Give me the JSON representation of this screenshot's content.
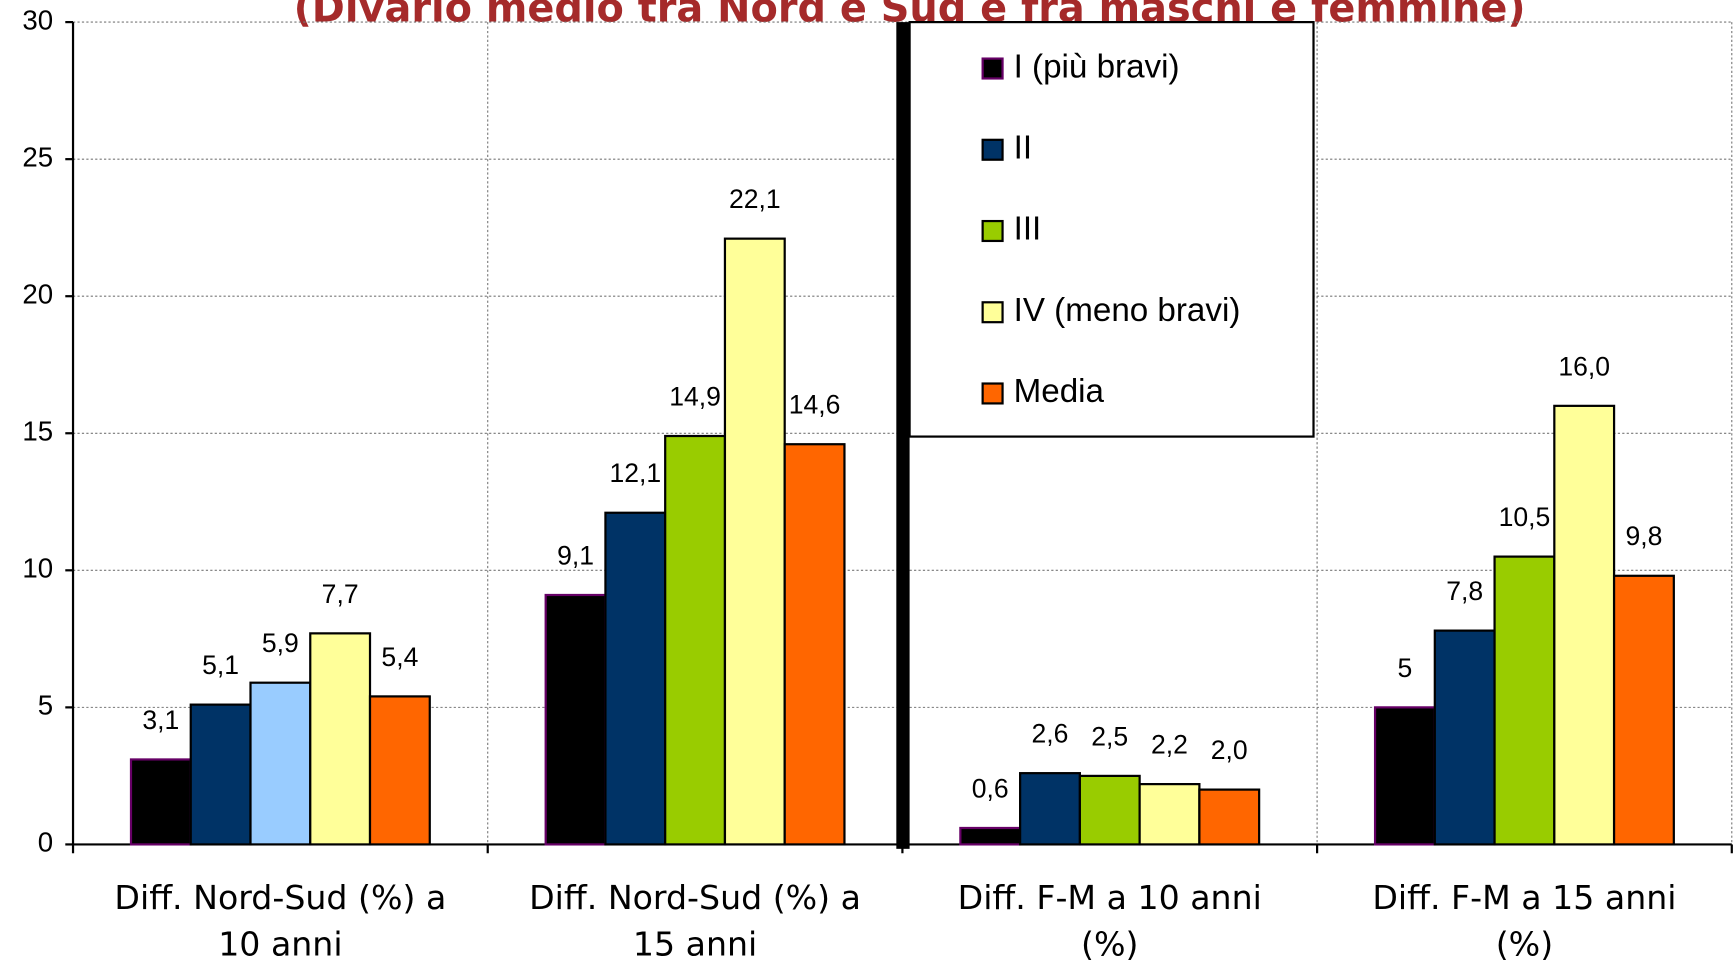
{
  "chart_data": {
    "type": "bar",
    "title": "(Divario medio tra Nord e Sud e fra maschi e femmine)",
    "categories": [
      [
        "Diff. Nord-Sud (%) a",
        "10 anni"
      ],
      [
        "Diff. Nord-Sud (%) a",
        "15 anni"
      ],
      [
        "Diff. F-M a 10 anni",
        "(%)"
      ],
      [
        "Diff. F-M a 15 anni",
        "(%)"
      ]
    ],
    "series": [
      {
        "name": "I (più bravi)",
        "color": "#000000",
        "border": "#660066",
        "values": [
          3.1,
          9.1,
          0.6,
          5
        ],
        "value_labels": [
          "3,1",
          "9,1",
          "0,6",
          "5"
        ]
      },
      {
        "name": "II",
        "color": "#003366",
        "border": "#000000",
        "values": [
          5.1,
          12.1,
          2.6,
          7.8
        ],
        "value_labels": [
          "5,1",
          "12,1",
          "2,6",
          "7,8"
        ]
      },
      {
        "name": "III",
        "color": "#99cc00",
        "border": "#000000",
        "point_colors": [
          "#99ccff",
          "#99cc00",
          "#99cc00",
          "#99cc00"
        ],
        "values": [
          5.9,
          14.9,
          2.5,
          10.5
        ],
        "value_labels": [
          "5,9",
          "14,9",
          "2,5",
          "10,5"
        ]
      },
      {
        "name": "IV (meno bravi)",
        "color": "#ffff99",
        "border": "#000000",
        "values": [
          7.7,
          22.1,
          2.2,
          16.0
        ],
        "value_labels": [
          "7,7",
          "22,1",
          "2,2",
          "16,0"
        ]
      },
      {
        "name": "Media",
        "color": "#ff6600",
        "border": "#000000",
        "values": [
          5.4,
          14.6,
          2.0,
          9.8
        ],
        "value_labels": [
          "5,4",
          "14,6",
          "2,0",
          "9,8"
        ]
      }
    ],
    "ylim": [
      0,
      30
    ],
    "yticks": [
      0,
      5,
      10,
      15,
      20,
      25,
      30
    ],
    "grid": true,
    "legend": "top-right"
  }
}
